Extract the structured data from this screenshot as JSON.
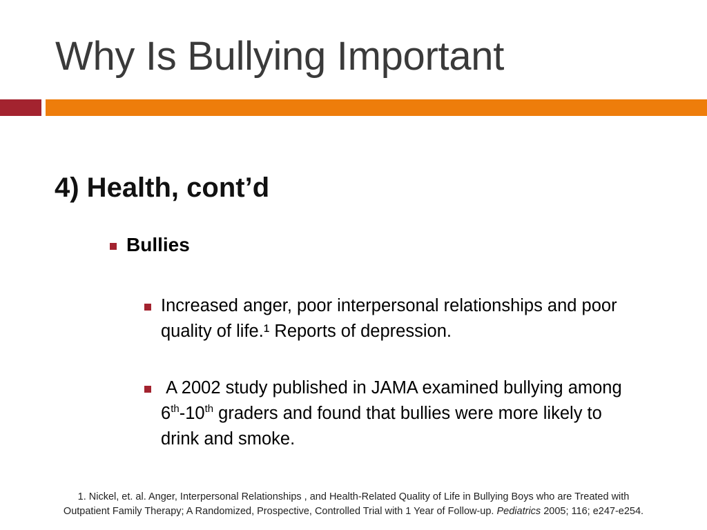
{
  "slide": {
    "title": "Why Is Bullying Important",
    "subtitle": "4) Health, cont’d",
    "colors": {
      "accent_red": "#a3232f",
      "accent_orange": "#ee7d0b",
      "title_gray": "#3a3a3a"
    },
    "level1": {
      "label": "Bullies"
    },
    "level2": [
      {
        "text": "Increased anger, poor interpersonal relationships and poor quality of life.¹ Reports of depression."
      },
      {
        "part1": " A 2002 study published in JAMA examined bullying among 6",
        "sup1": "th",
        "part2": "-10",
        "sup2": "th",
        "part3": " graders and found that bullies were more likely to drink and smoke."
      }
    ],
    "footnote": {
      "line1": "1. Nickel, et. al. Anger, Interpersonal Relationships , and Health-Related Quality of Life in Bullying Boys who are Treated with",
      "line2_pre": "Outpatient Family Therapy; A Randomized, Prospective, Controlled Trial with 1 Year of Follow-up. ",
      "journal": "Pediatrics",
      "line2_post": " 2005; 116; e247-e254."
    }
  }
}
